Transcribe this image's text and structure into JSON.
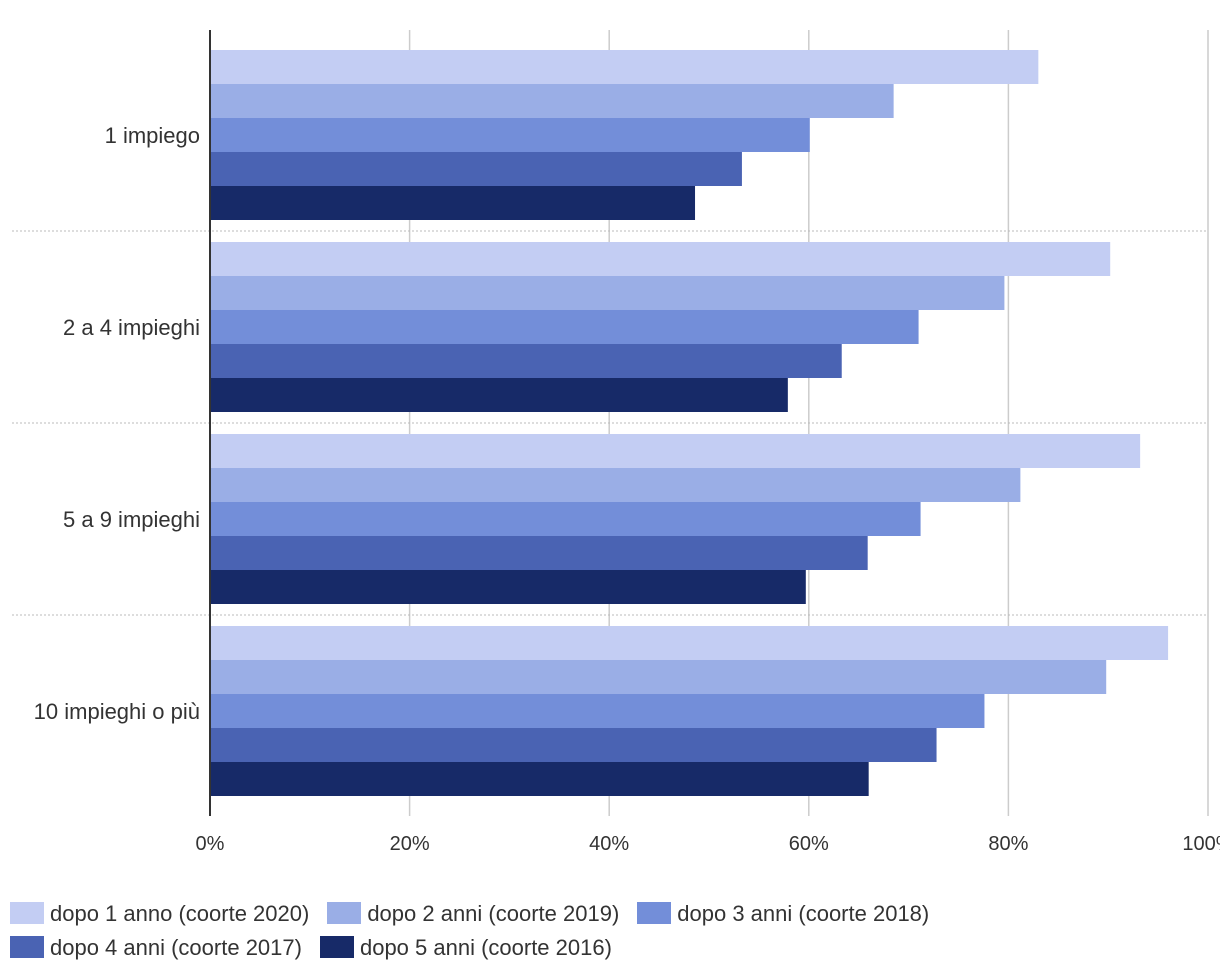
{
  "chart_data": {
    "type": "bar",
    "orientation": "horizontal",
    "title": "",
    "xlabel": "",
    "ylabel": "",
    "categories": [
      "1 impiego",
      "2 a 4 impieghi",
      "5 a 9 impieghi",
      "10 impieghi o più"
    ],
    "xlim": [
      0,
      100
    ],
    "ticks": [
      0,
      20,
      40,
      60,
      80,
      100
    ],
    "tick_labels": [
      "0%",
      "20%",
      "40%",
      "60%",
      "80%",
      "100%"
    ],
    "grid": true,
    "legend_position": "bottom",
    "series": [
      {
        "name": "dopo 1 anno (coorte 2020)",
        "color": "#c3cdf3",
        "values": [
          83,
          90.2,
          93.2,
          96
        ]
      },
      {
        "name": "dopo 2 anni (coorte 2019)",
        "color": "#9aaee6",
        "values": [
          68.5,
          79.6,
          81.2,
          89.8
        ]
      },
      {
        "name": "dopo 3 anni (coorte 2018)",
        "color": "#738ed9",
        "values": [
          60.1,
          71,
          71.2,
          77.6
        ]
      },
      {
        "name": "dopo 4 anni (coorte 2017)",
        "color": "#4a63b3",
        "values": [
          53.3,
          63.3,
          65.9,
          72.8
        ]
      },
      {
        "name": "dopo 5 anni (coorte 2016)",
        "color": "#172a68",
        "values": [
          48.6,
          57.9,
          59.7,
          66
        ]
      }
    ]
  }
}
